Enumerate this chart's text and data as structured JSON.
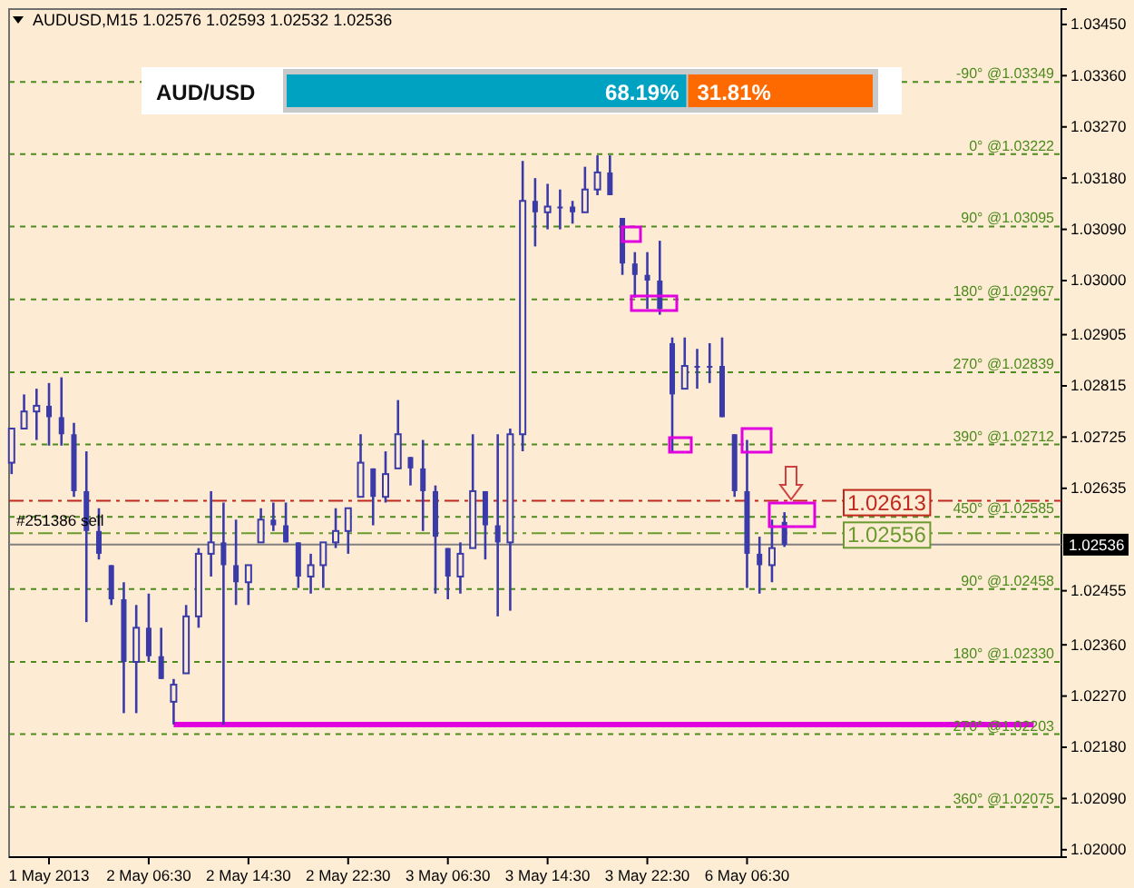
{
  "chart_data": [
    {
      "type": "candlestick",
      "title": "AUDUSD,M15  1.02576 1.02593 1.02532 1.02536",
      "categories": [
        null,
        null,
        null,
        "1 May 2013",
        null,
        null,
        null,
        null,
        null,
        null,
        null,
        "2 May 06:30",
        null,
        null,
        null,
        null,
        null,
        null,
        null,
        "2 May 14:30",
        null,
        null,
        null,
        null,
        null,
        null,
        null,
        "2 May 22:30",
        null,
        null,
        null,
        null,
        null,
        null,
        null,
        "3 May 06:30",
        null,
        null,
        null,
        null,
        null,
        null,
        null,
        "3 May 14:30",
        null,
        null,
        null,
        null,
        null,
        null,
        null,
        "3 May 22:30",
        null,
        null,
        null,
        null,
        null,
        null,
        null,
        "6 May 06:30",
        null,
        null,
        null,
        null,
        null,
        null,
        null,
        null,
        null,
        null,
        null,
        null,
        null,
        null,
        null,
        null,
        null,
        null,
        null,
        null,
        null,
        null,
        null
      ],
      "ohlc": [
        [
          1.0268,
          1.0274,
          1.0266,
          1.0274
        ],
        [
          1.0274,
          1.028,
          1.0274,
          1.0277
        ],
        [
          1.0277,
          1.0281,
          1.0272,
          1.0278
        ],
        [
          1.0278,
          1.0282,
          1.0271,
          1.0276
        ],
        [
          1.0276,
          1.0283,
          1.0271,
          1.0273
        ],
        [
          1.0273,
          1.0275,
          1.0262,
          1.0263
        ],
        [
          1.0263,
          1.027,
          1.024,
          1.0256
        ],
        [
          1.0256,
          1.026,
          1.0251,
          1.0252
        ],
        [
          1.025,
          1.025,
          1.0243,
          1.0244
        ],
        [
          1.0244,
          1.0247,
          1.0224,
          1.0233
        ],
        [
          1.0233,
          1.0243,
          1.0224,
          1.0239
        ],
        [
          1.0239,
          1.0245,
          1.0233,
          1.0234
        ],
        [
          1.0234,
          1.0239,
          1.023,
          1.023
        ],
        [
          1.0226,
          1.023,
          1.0222,
          1.0229
        ],
        [
          1.0231,
          1.0243,
          1.0231,
          1.0241
        ],
        [
          1.0241,
          1.0253,
          1.0239,
          1.0252
        ],
        [
          1.0252,
          1.0263,
          1.0248,
          1.0254
        ],
        [
          1.0254,
          1.0261,
          1.0222,
          1.025
        ],
        [
          1.025,
          1.0258,
          1.0243,
          1.0247
        ],
        [
          1.0247,
          1.025,
          1.0243,
          1.025
        ],
        [
          1.0254,
          1.026,
          1.0254,
          1.0258
        ],
        [
          1.0258,
          1.0261,
          1.0256,
          1.0257
        ],
        [
          1.0257,
          1.0261,
          1.0254,
          1.0254
        ],
        [
          1.0254,
          1.0254,
          1.0246,
          1.0248
        ],
        [
          1.0248,
          1.0252,
          1.0245,
          1.025
        ],
        [
          1.025,
          1.0254,
          1.0246,
          1.0254
        ],
        [
          1.0254,
          1.026,
          1.0253,
          1.0256
        ],
        [
          1.0256,
          1.026,
          1.0252,
          1.026
        ],
        [
          1.0262,
          1.0273,
          1.0262,
          1.0268
        ],
        [
          1.0267,
          1.0267,
          1.0257,
          1.0262
        ],
        [
          1.0262,
          1.027,
          1.0261,
          1.0266
        ],
        [
          1.0267,
          1.0279,
          1.0267,
          1.0273
        ],
        [
          1.0269,
          1.0269,
          1.0264,
          1.0267
        ],
        [
          1.0267,
          1.0272,
          1.0256,
          1.0263
        ],
        [
          1.0263,
          1.0264,
          1.0245,
          1.0255
        ],
        [
          1.0253,
          1.0253,
          1.0244,
          1.0248
        ],
        [
          1.0248,
          1.0254,
          1.0245,
          1.0252
        ],
        [
          1.0253,
          1.0273,
          1.0253,
          1.0263
        ],
        [
          1.0263,
          1.0263,
          1.0251,
          1.0257
        ],
        [
          1.0257,
          1.0273,
          1.0241,
          1.0254
        ],
        [
          1.0254,
          1.0274,
          1.0242,
          1.0273
        ],
        [
          1.0273,
          1.0321,
          1.027,
          1.0314
        ],
        [
          1.0314,
          1.0318,
          1.0306,
          1.0312
        ],
        [
          1.0312,
          1.0317,
          1.0309,
          1.0313
        ],
        [
          1.0313,
          1.0316,
          1.0309,
          1.0313
        ],
        [
          1.0313,
          1.0314,
          1.031,
          1.0312
        ],
        [
          1.0312,
          1.032,
          1.0312,
          1.0316
        ],
        [
          1.0316,
          1.0322,
          1.0315,
          1.0319
        ],
        [
          1.0319,
          1.0322,
          1.0315,
          1.0315
        ],
        [
          1.0311,
          1.0311,
          1.0301,
          1.0303
        ],
        [
          1.0303,
          1.0305,
          1.0297,
          1.0301
        ],
        [
          1.0301,
          1.0305,
          1.0295,
          1.03
        ],
        [
          1.03,
          1.0307,
          1.0294,
          1.0295
        ],
        [
          1.0289,
          1.029,
          1.027,
          1.028
        ],
        [
          1.0281,
          1.029,
          1.0281,
          1.0285
        ],
        [
          1.0285,
          1.0288,
          1.0281,
          1.0285
        ],
        [
          1.0285,
          1.0289,
          1.0282,
          1.0285
        ],
        [
          1.0285,
          1.029,
          1.0276,
          1.0276
        ],
        [
          1.0273,
          1.0273,
          1.0262,
          1.0263
        ],
        [
          1.0263,
          1.0272,
          1.0246,
          1.0252
        ],
        [
          1.0252,
          1.0255,
          1.0245,
          1.025
        ],
        [
          1.025,
          1.0258,
          1.0247,
          1.0253
        ],
        [
          1.02576,
          1.02593,
          1.02532,
          1.02536
        ],
        null,
        null,
        null,
        null,
        null,
        null,
        null,
        null,
        null,
        null,
        null,
        null,
        null,
        null,
        null,
        null,
        null,
        null,
        null,
        null
      ],
      "color": "#3a3aa8",
      "series": [
        {
          "type": "line",
          "color": "#e000e0",
          "values": [
            null,
            null,
            null,
            null,
            null,
            null,
            null,
            null,
            null,
            null,
            null,
            null,
            null,
            1.0222,
            1.0222,
            1.0222,
            1.0222,
            1.0222,
            1.0222,
            1.0222,
            1.0222,
            1.0222,
            1.0222,
            1.0222,
            1.0222,
            1.0222,
            1.0222,
            1.0222,
            1.0222,
            1.0222,
            1.0222,
            1.0222,
            1.0222,
            1.0222,
            1.0222,
            1.0222,
            1.0222,
            1.0222,
            1.0222,
            1.0222,
            1.0222,
            1.0222,
            1.0222,
            1.0222,
            1.0222,
            1.0222,
            1.0222,
            1.0222,
            1.0222,
            1.0222,
            1.0222,
            1.0222,
            1.0222,
            1.0222,
            1.0222,
            1.0222,
            1.0222,
            1.0222,
            1.0222,
            1.0222,
            1.0222,
            1.0222,
            1.0222,
            1.0222,
            1.0222,
            1.0222,
            1.0222,
            1.0222,
            1.0222,
            1.0222,
            1.0222,
            1.0222,
            1.0222,
            1.0222,
            1.0222,
            1.0222,
            1.0222,
            1.0222,
            1.0222,
            1.0222,
            1.0222,
            1.0222,
            1.0222
          ]
        }
      ],
      "ylim": [
        1.01987,
        1.03477
      ],
      "yticks": [
        {
          "value": 1.0345,
          "label": "1.03450"
        },
        {
          "value": 1.0336,
          "label": "1.03360"
        },
        {
          "value": 1.0327,
          "label": "1.03270"
        },
        {
          "value": 1.0318,
          "label": "1.03180"
        },
        {
          "value": 1.0309,
          "label": "1.03090"
        },
        {
          "value": 1.03,
          "label": "1.03000"
        },
        {
          "value": 1.02905,
          "label": "1.02905"
        },
        {
          "value": 1.02815,
          "label": "1.02815"
        },
        {
          "value": 1.02725,
          "label": "1.02725"
        },
        {
          "value": 1.02635,
          "label": "1.02635"
        },
        {
          "value": 1.02455,
          "label": "1.02455"
        },
        {
          "value": 1.0236,
          "label": "1.02360"
        },
        {
          "value": 1.0227,
          "label": "1.02270"
        },
        {
          "value": 1.0218,
          "label": "1.02180"
        },
        {
          "value": 1.0209,
          "label": "1.02090"
        },
        {
          "value": 1.02,
          "label": "1.02000"
        }
      ],
      "ref_lines": [
        {
          "axis": "y",
          "value": 1.03349,
          "label": "-90° @1.03349",
          "color": "#4e8a1e",
          "line_style": "dotted"
        },
        {
          "axis": "y",
          "value": 1.03222,
          "label": "0° @1.03222",
          "color": "#4e8a1e",
          "line_style": "dotted"
        },
        {
          "axis": "y",
          "value": 1.03095,
          "label": "90° @1.03095",
          "color": "#4e8a1e",
          "line_style": "dotted"
        },
        {
          "axis": "y",
          "value": 1.02967,
          "label": "180° @1.02967",
          "color": "#4e8a1e",
          "line_style": "dotted"
        },
        {
          "axis": "y",
          "value": 1.02839,
          "label": "270° @1.02839",
          "color": "#4e8a1e",
          "line_style": "dotted"
        },
        {
          "axis": "y",
          "value": 1.02712,
          "label": "390° @1.02712",
          "color": "#4e8a1e",
          "line_style": "dotted"
        },
        {
          "axis": "y",
          "value": 1.02585,
          "label": "450° @1.02585",
          "color": "#4e8a1e",
          "line_style": "dotted"
        },
        {
          "axis": "y",
          "value": 1.02458,
          "label": "90° @1.02458",
          "color": "#4e8a1e",
          "line_style": "dotted"
        },
        {
          "axis": "y",
          "value": 1.0233,
          "label": "180° @1.02330",
          "color": "#4e8a1e",
          "line_style": "dotted"
        },
        {
          "axis": "y",
          "value": 1.02203,
          "label": "270° @1.02203",
          "color": "#4e8a1e",
          "line_style": "dotted"
        },
        {
          "axis": "y",
          "value": 1.02075,
          "label": "360° @1.02075",
          "color": "#4e8a1e",
          "line_style": "dotted"
        },
        {
          "axis": "y",
          "value": 1.02613,
          "label": "1.02613",
          "color": "#c0281e",
          "line_style": "dashed"
        },
        {
          "axis": "y",
          "value": 1.02556,
          "label": "1.02556",
          "color": "#6a9a30",
          "line_style": "dashed"
        },
        {
          "axis": "y",
          "value": 1.02536,
          "label": "1.02536",
          "color": "#808080",
          "line_style": "solid"
        }
      ],
      "annotations": [
        {
          "text": "#251386 sell",
          "y": 1.02556
        }
      ]
    },
    {
      "type": "bar",
      "orientation": "horizontal",
      "stacked": true,
      "categories": [
        "AUD/USD"
      ],
      "series": [
        {
          "color": "#00a2c2",
          "values": [
            68.19
          ],
          "value_labels": [
            "68.19%"
          ]
        },
        {
          "color": "#ff6a00",
          "values": [
            31.81
          ],
          "value_labels": [
            "31.81%"
          ]
        }
      ],
      "xlim": [
        0,
        100
      ],
      "tick_labels": false
    }
  ]
}
